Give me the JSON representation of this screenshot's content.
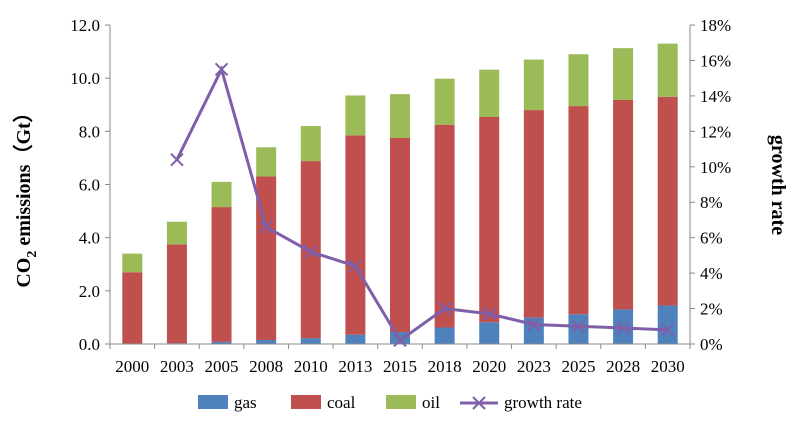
{
  "chart_data": {
    "type": "bar",
    "stacked": true,
    "categories": [
      "2000",
      "2003",
      "2005",
      "2008",
      "2010",
      "2013",
      "2015",
      "2018",
      "2020",
      "2023",
      "2025",
      "2028",
      "2030"
    ],
    "series": [
      {
        "name": "gas",
        "color": "#4f81bd",
        "values": [
          0.02,
          0.03,
          0.08,
          0.15,
          0.22,
          0.35,
          0.45,
          0.62,
          0.82,
          1.0,
          1.12,
          1.3,
          1.45
        ]
      },
      {
        "name": "coal",
        "color": "#c0504d",
        "values": [
          2.68,
          3.72,
          5.07,
          6.15,
          6.66,
          7.5,
          7.3,
          7.63,
          7.72,
          7.8,
          7.83,
          7.88,
          7.85
        ]
      },
      {
        "name": "oil",
        "color": "#9bbb59",
        "values": [
          0.7,
          0.85,
          0.95,
          1.1,
          1.32,
          1.5,
          1.65,
          1.73,
          1.78,
          1.9,
          1.95,
          1.95,
          2.0
        ]
      }
    ],
    "line_series": {
      "name": "growth rate",
      "color": "#7f5fa8",
      "axis": "right",
      "values": [
        null,
        10.4,
        15.5,
        6.6,
        5.2,
        4.4,
        0.2,
        2.0,
        1.7,
        1.1,
        1.0,
        0.9,
        0.8
      ]
    },
    "ylabel_left": {
      "main": "CO",
      "sub": "2",
      "rest": " emissions（Gt）"
    },
    "ylabel_right": "growth rate",
    "ylim_left": [
      0,
      12
    ],
    "ylim_right": [
      0,
      18
    ],
    "yticks_left": [
      "0.0",
      "2.0",
      "4.0",
      "6.0",
      "8.0",
      "10.0",
      "12.0"
    ],
    "yticks_right": [
      "0%",
      "2%",
      "4%",
      "6%",
      "8%",
      "10%",
      "12%",
      "14%",
      "16%",
      "18%"
    ],
    "legend_position": "bottom",
    "grid": false
  }
}
